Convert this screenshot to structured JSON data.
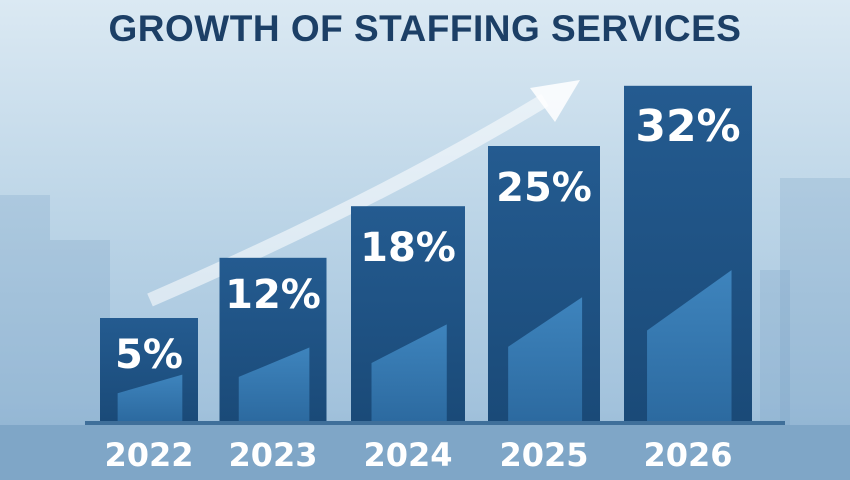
{
  "chart_data": {
    "type": "bar",
    "title": "GROWTH OF STAFFING SERVICES",
    "categories": [
      "2022",
      "2023",
      "2024",
      "2025",
      "2026"
    ],
    "values": [
      5,
      12,
      18,
      25,
      32
    ],
    "data_labels": [
      "5%",
      "12%",
      "18%",
      "25%",
      "32%"
    ],
    "xlabel": "",
    "ylabel": "",
    "grid": false,
    "annotations": [
      "upward trend arrow"
    ],
    "colors": {
      "bar": "#1f5487",
      "bar_inner": "#3a7db5",
      "title": "#1c3f66",
      "labels": "#ffffff"
    }
  }
}
